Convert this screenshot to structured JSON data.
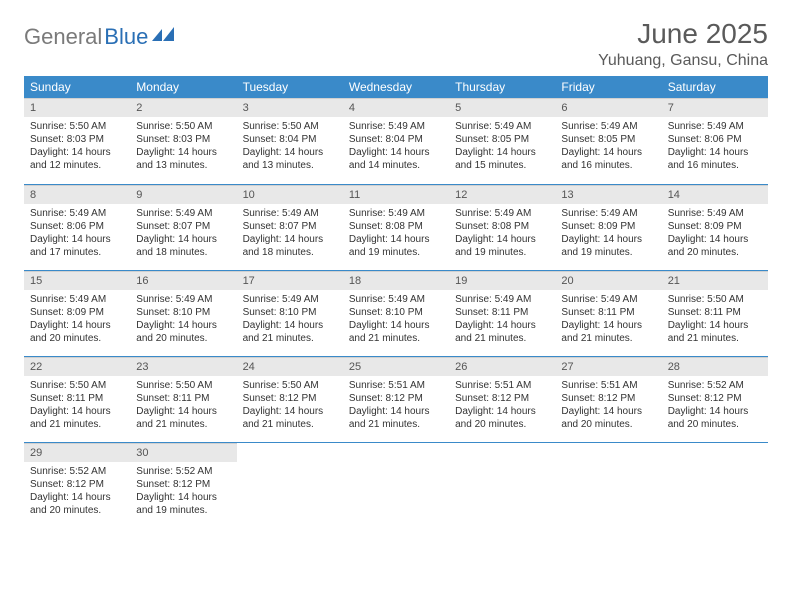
{
  "logo": {
    "gray": "General",
    "blue": "Blue"
  },
  "title": "June 2025",
  "location": "Yuhuang, Gansu, China",
  "colors": {
    "header_bg": "#3a8ac9",
    "header_text": "#ffffff",
    "daynum_bg": "#e8e8e8",
    "row_border": "#3a8ac9",
    "body_text": "#333333",
    "title_text": "#5a5a5a",
    "logo_gray": "#7a7a7a",
    "logo_blue": "#2a6fb5"
  },
  "weekdays": [
    "Sunday",
    "Monday",
    "Tuesday",
    "Wednesday",
    "Thursday",
    "Friday",
    "Saturday"
  ],
  "days": [
    {
      "n": 1,
      "sr": "5:50 AM",
      "ss": "8:03 PM",
      "d1": "14 hours",
      "d2": "and 12 minutes."
    },
    {
      "n": 2,
      "sr": "5:50 AM",
      "ss": "8:03 PM",
      "d1": "14 hours",
      "d2": "and 13 minutes."
    },
    {
      "n": 3,
      "sr": "5:50 AM",
      "ss": "8:04 PM",
      "d1": "14 hours",
      "d2": "and 13 minutes."
    },
    {
      "n": 4,
      "sr": "5:49 AM",
      "ss": "8:04 PM",
      "d1": "14 hours",
      "d2": "and 14 minutes."
    },
    {
      "n": 5,
      "sr": "5:49 AM",
      "ss": "8:05 PM",
      "d1": "14 hours",
      "d2": "and 15 minutes."
    },
    {
      "n": 6,
      "sr": "5:49 AM",
      "ss": "8:05 PM",
      "d1": "14 hours",
      "d2": "and 16 minutes."
    },
    {
      "n": 7,
      "sr": "5:49 AM",
      "ss": "8:06 PM",
      "d1": "14 hours",
      "d2": "and 16 minutes."
    },
    {
      "n": 8,
      "sr": "5:49 AM",
      "ss": "8:06 PM",
      "d1": "14 hours",
      "d2": "and 17 minutes."
    },
    {
      "n": 9,
      "sr": "5:49 AM",
      "ss": "8:07 PM",
      "d1": "14 hours",
      "d2": "and 18 minutes."
    },
    {
      "n": 10,
      "sr": "5:49 AM",
      "ss": "8:07 PM",
      "d1": "14 hours",
      "d2": "and 18 minutes."
    },
    {
      "n": 11,
      "sr": "5:49 AM",
      "ss": "8:08 PM",
      "d1": "14 hours",
      "d2": "and 19 minutes."
    },
    {
      "n": 12,
      "sr": "5:49 AM",
      "ss": "8:08 PM",
      "d1": "14 hours",
      "d2": "and 19 minutes."
    },
    {
      "n": 13,
      "sr": "5:49 AM",
      "ss": "8:09 PM",
      "d1": "14 hours",
      "d2": "and 19 minutes."
    },
    {
      "n": 14,
      "sr": "5:49 AM",
      "ss": "8:09 PM",
      "d1": "14 hours",
      "d2": "and 20 minutes."
    },
    {
      "n": 15,
      "sr": "5:49 AM",
      "ss": "8:09 PM",
      "d1": "14 hours",
      "d2": "and 20 minutes."
    },
    {
      "n": 16,
      "sr": "5:49 AM",
      "ss": "8:10 PM",
      "d1": "14 hours",
      "d2": "and 20 minutes."
    },
    {
      "n": 17,
      "sr": "5:49 AM",
      "ss": "8:10 PM",
      "d1": "14 hours",
      "d2": "and 21 minutes."
    },
    {
      "n": 18,
      "sr": "5:49 AM",
      "ss": "8:10 PM",
      "d1": "14 hours",
      "d2": "and 21 minutes."
    },
    {
      "n": 19,
      "sr": "5:49 AM",
      "ss": "8:11 PM",
      "d1": "14 hours",
      "d2": "and 21 minutes."
    },
    {
      "n": 20,
      "sr": "5:49 AM",
      "ss": "8:11 PM",
      "d1": "14 hours",
      "d2": "and 21 minutes."
    },
    {
      "n": 21,
      "sr": "5:50 AM",
      "ss": "8:11 PM",
      "d1": "14 hours",
      "d2": "and 21 minutes."
    },
    {
      "n": 22,
      "sr": "5:50 AM",
      "ss": "8:11 PM",
      "d1": "14 hours",
      "d2": "and 21 minutes."
    },
    {
      "n": 23,
      "sr": "5:50 AM",
      "ss": "8:11 PM",
      "d1": "14 hours",
      "d2": "and 21 minutes."
    },
    {
      "n": 24,
      "sr": "5:50 AM",
      "ss": "8:12 PM",
      "d1": "14 hours",
      "d2": "and 21 minutes."
    },
    {
      "n": 25,
      "sr": "5:51 AM",
      "ss": "8:12 PM",
      "d1": "14 hours",
      "d2": "and 21 minutes."
    },
    {
      "n": 26,
      "sr": "5:51 AM",
      "ss": "8:12 PM",
      "d1": "14 hours",
      "d2": "and 20 minutes."
    },
    {
      "n": 27,
      "sr": "5:51 AM",
      "ss": "8:12 PM",
      "d1": "14 hours",
      "d2": "and 20 minutes."
    },
    {
      "n": 28,
      "sr": "5:52 AM",
      "ss": "8:12 PM",
      "d1": "14 hours",
      "d2": "and 20 minutes."
    },
    {
      "n": 29,
      "sr": "5:52 AM",
      "ss": "8:12 PM",
      "d1": "14 hours",
      "d2": "and 20 minutes."
    },
    {
      "n": 30,
      "sr": "5:52 AM",
      "ss": "8:12 PM",
      "d1": "14 hours",
      "d2": "and 19 minutes."
    }
  ],
  "labels": {
    "sunrise": "Sunrise: ",
    "sunset": "Sunset: ",
    "daylight": "Daylight: "
  }
}
